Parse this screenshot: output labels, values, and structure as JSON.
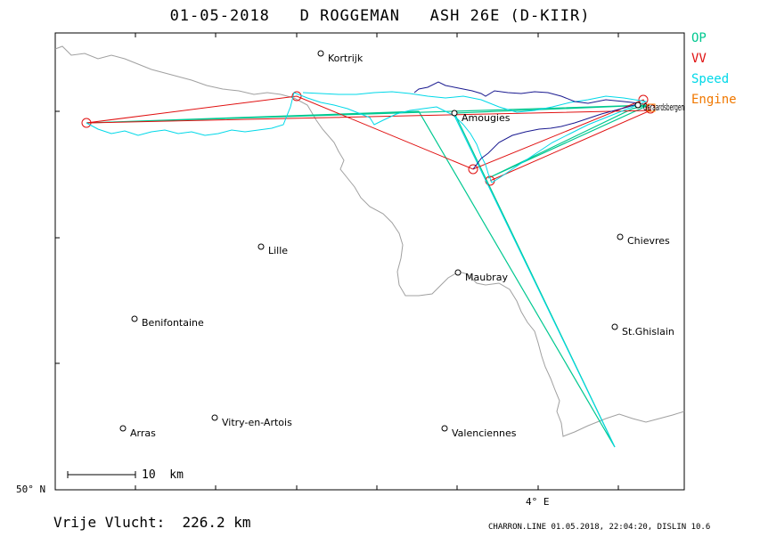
{
  "title": "01-05-2018   D ROGGEMAN   ASH 26E (D-KIIR)",
  "legend": [
    {
      "label": "OP",
      "color": "#00c890"
    },
    {
      "label": "VV",
      "color": "#e01010"
    },
    {
      "label": "Speed",
      "color": "#00d8e8"
    },
    {
      "label": "Engine",
      "color": "#f07800"
    }
  ],
  "places": [
    {
      "name": "Kortrijk"
    },
    {
      "name": "Amougies"
    },
    {
      "name": "Geraardsbergen"
    },
    {
      "name": "Lille"
    },
    {
      "name": "Chievres"
    },
    {
      "name": "Maubray"
    },
    {
      "name": "Benifontaine"
    },
    {
      "name": "St.Ghislain"
    },
    {
      "name": "Vitry-en-Artois"
    },
    {
      "name": "Arras"
    },
    {
      "name": "Valenciennes"
    }
  ],
  "axes": {
    "lat_label": "50° N",
    "lon_label": "4° E"
  },
  "scale": {
    "label": "10  km"
  },
  "footer": {
    "distance": "Vrije Vlucht:  226.2 km",
    "info": "CHARRON.LINE 01.05.2018, 22:04:20, DISLIN 10.6"
  },
  "colors": {
    "border": "#a0a0a0",
    "track": "#00d8e8",
    "track_dark": "#1a1a90",
    "op": "#00c890",
    "vv": "#e01010"
  }
}
